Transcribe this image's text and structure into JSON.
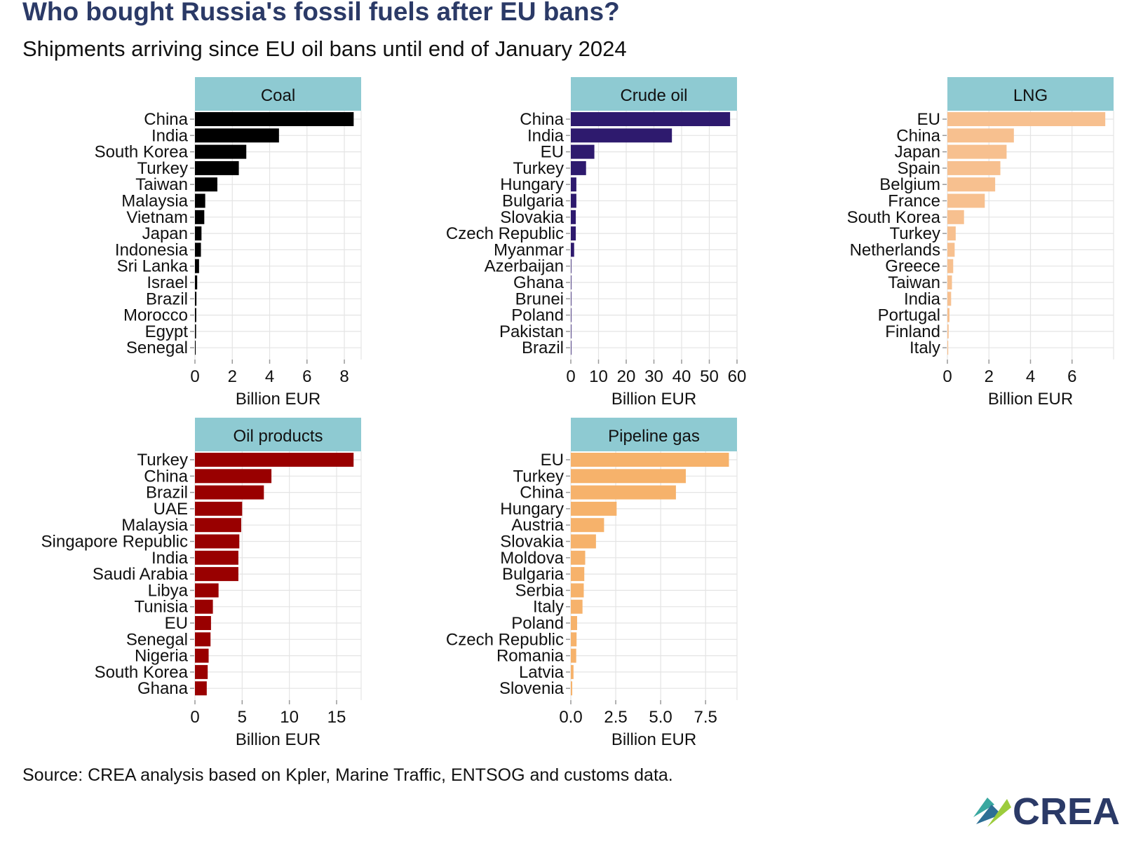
{
  "header": {
    "title": "Who bought Russia's fossil fuels after EU bans?",
    "subtitle": "Shipments arriving since EU oil bans until end of January 2024"
  },
  "footer": {
    "source": "Source: CREA analysis based on Kpler, Marine Traffic, ENTSOG and customs data.",
    "logo_text": "CREA"
  },
  "colors": {
    "coal": "#000000",
    "crude_oil": "#2e1a6e",
    "lng": "#f7c08f",
    "oil_products": "#990000",
    "pipeline_gas": "#f6b26b",
    "strip": "#8ecad2",
    "grid": "#e4e4e4"
  },
  "chart_data": [
    {
      "type": "bar",
      "orientation": "horizontal",
      "title": "Coal",
      "xlabel": "Billion EUR",
      "xlim": [
        0,
        8.9
      ],
      "xticks": [
        0,
        2,
        4,
        6,
        8
      ],
      "categories": [
        "China",
        "India",
        "South Korea",
        "Turkey",
        "Taiwan",
        "Malaysia",
        "Vietnam",
        "Japan",
        "Indonesia",
        "Sri Lanka",
        "Israel",
        "Brazil",
        "Morocco",
        "Egypt",
        "Senegal"
      ],
      "values": [
        8.5,
        4.5,
        2.75,
        2.35,
        1.2,
        0.55,
        0.5,
        0.35,
        0.32,
        0.22,
        0.12,
        0.08,
        0.07,
        0.06,
        0.04
      ]
    },
    {
      "type": "bar",
      "orientation": "horizontal",
      "title": "Crude oil",
      "xlabel": "Billion EUR",
      "xlim": [
        0,
        60
      ],
      "xticks": [
        0,
        10,
        20,
        30,
        40,
        50,
        60
      ],
      "categories": [
        "China",
        "India",
        "EU",
        "Turkey",
        "Hungary",
        "Bulgaria",
        "Slovakia",
        "Czech Republic",
        "Myanmar",
        "Azerbaijan",
        "Ghana",
        "Brunei",
        "Poland",
        "Pakistan",
        "Brazil"
      ],
      "values": [
        57.5,
        36.5,
        8.5,
        5.5,
        2.0,
        2.0,
        1.8,
        1.8,
        1.2,
        0.1,
        0.08,
        0.07,
        0.06,
        0.05,
        0.04
      ]
    },
    {
      "type": "bar",
      "orientation": "horizontal",
      "title": "LNG",
      "xlabel": "Billion EUR",
      "xlim": [
        0,
        8.0
      ],
      "xticks": [
        0,
        2,
        4,
        6
      ],
      "categories": [
        "EU",
        "China",
        "Japan",
        "Spain",
        "Belgium",
        "France",
        "South Korea",
        "Turkey",
        "Netherlands",
        "Greece",
        "Taiwan",
        "India",
        "Portugal",
        "Finland",
        "Italy"
      ],
      "values": [
        7.6,
        3.2,
        2.85,
        2.55,
        2.3,
        1.8,
        0.8,
        0.4,
        0.35,
        0.28,
        0.22,
        0.18,
        0.1,
        0.06,
        0.04
      ]
    },
    {
      "type": "bar",
      "orientation": "horizontal",
      "title": "Oil products",
      "xlabel": "Billion EUR",
      "xlim": [
        0,
        17.6
      ],
      "xticks": [
        0,
        5,
        10,
        15
      ],
      "categories": [
        "Turkey",
        "China",
        "Brazil",
        "UAE",
        "Malaysia",
        "Singapore Republic",
        "India",
        "Saudi Arabia",
        "Libya",
        "Tunisia",
        "EU",
        "Senegal",
        "Nigeria",
        "South Korea",
        "Ghana"
      ],
      "values": [
        16.8,
        8.1,
        7.3,
        5.0,
        4.9,
        4.7,
        4.6,
        4.6,
        2.5,
        1.9,
        1.7,
        1.65,
        1.45,
        1.35,
        1.25
      ]
    },
    {
      "type": "bar",
      "orientation": "horizontal",
      "title": "Pipeline gas",
      "xlabel": "Billion EUR",
      "xlim": [
        0,
        9.25
      ],
      "xticks": [
        0,
        2.5,
        5,
        7.5
      ],
      "xticklabels": [
        "0.0",
        "2.5",
        "5.0",
        "7.5"
      ],
      "categories": [
        "EU",
        "Turkey",
        "China",
        "Hungary",
        "Austria",
        "Slovakia",
        "Moldova",
        "Bulgaria",
        "Serbia",
        "Italy",
        "Poland",
        "Czech Republic",
        "Romania",
        "Latvia",
        "Slovenia"
      ],
      "values": [
        8.8,
        6.4,
        5.85,
        2.55,
        1.85,
        1.4,
        0.8,
        0.75,
        0.72,
        0.65,
        0.35,
        0.32,
        0.3,
        0.15,
        0.08
      ]
    }
  ]
}
